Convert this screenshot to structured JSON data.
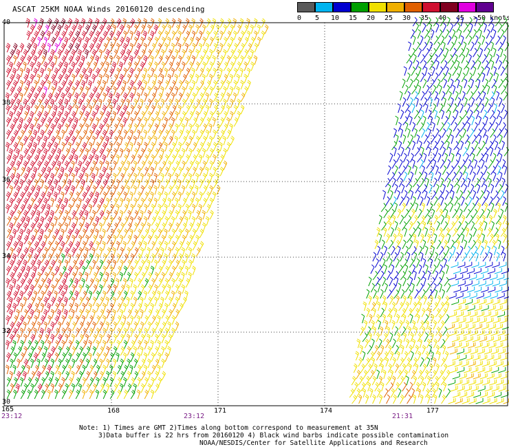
{
  "title": "ASCAT 25KM NOAA Winds 20160120 descending",
  "legend": {
    "labels": [
      "0",
      "5",
      "10",
      "15",
      "20",
      "25",
      "30",
      "35",
      "40",
      "45",
      ">50 knots"
    ],
    "colors": [
      "#5a5a5a",
      "#00b4f0",
      "#0000d0",
      "#00a000",
      "#f0e000",
      "#f0b000",
      "#e06000",
      "#d01030",
      "#800020",
      "#e000e0",
      "#600090"
    ]
  },
  "lat_ticks": [
    "40",
    "38",
    "36",
    "34",
    "32",
    "30"
  ],
  "lon_ticks": [
    "165",
    "168",
    "171",
    "174",
    "177"
  ],
  "times": [
    "23:12",
    "23:12",
    "21:31"
  ],
  "notes": [
    "Note: 1) Times are GMT 2)Times along bottom correspond to measurement at 35N",
    "3)Data buffer is 22 hrs from 20160120 4) Black wind barbs indicate possible contamination",
    "NOAA/NESDIS/Center for Satellite Applications and Research"
  ]
}
